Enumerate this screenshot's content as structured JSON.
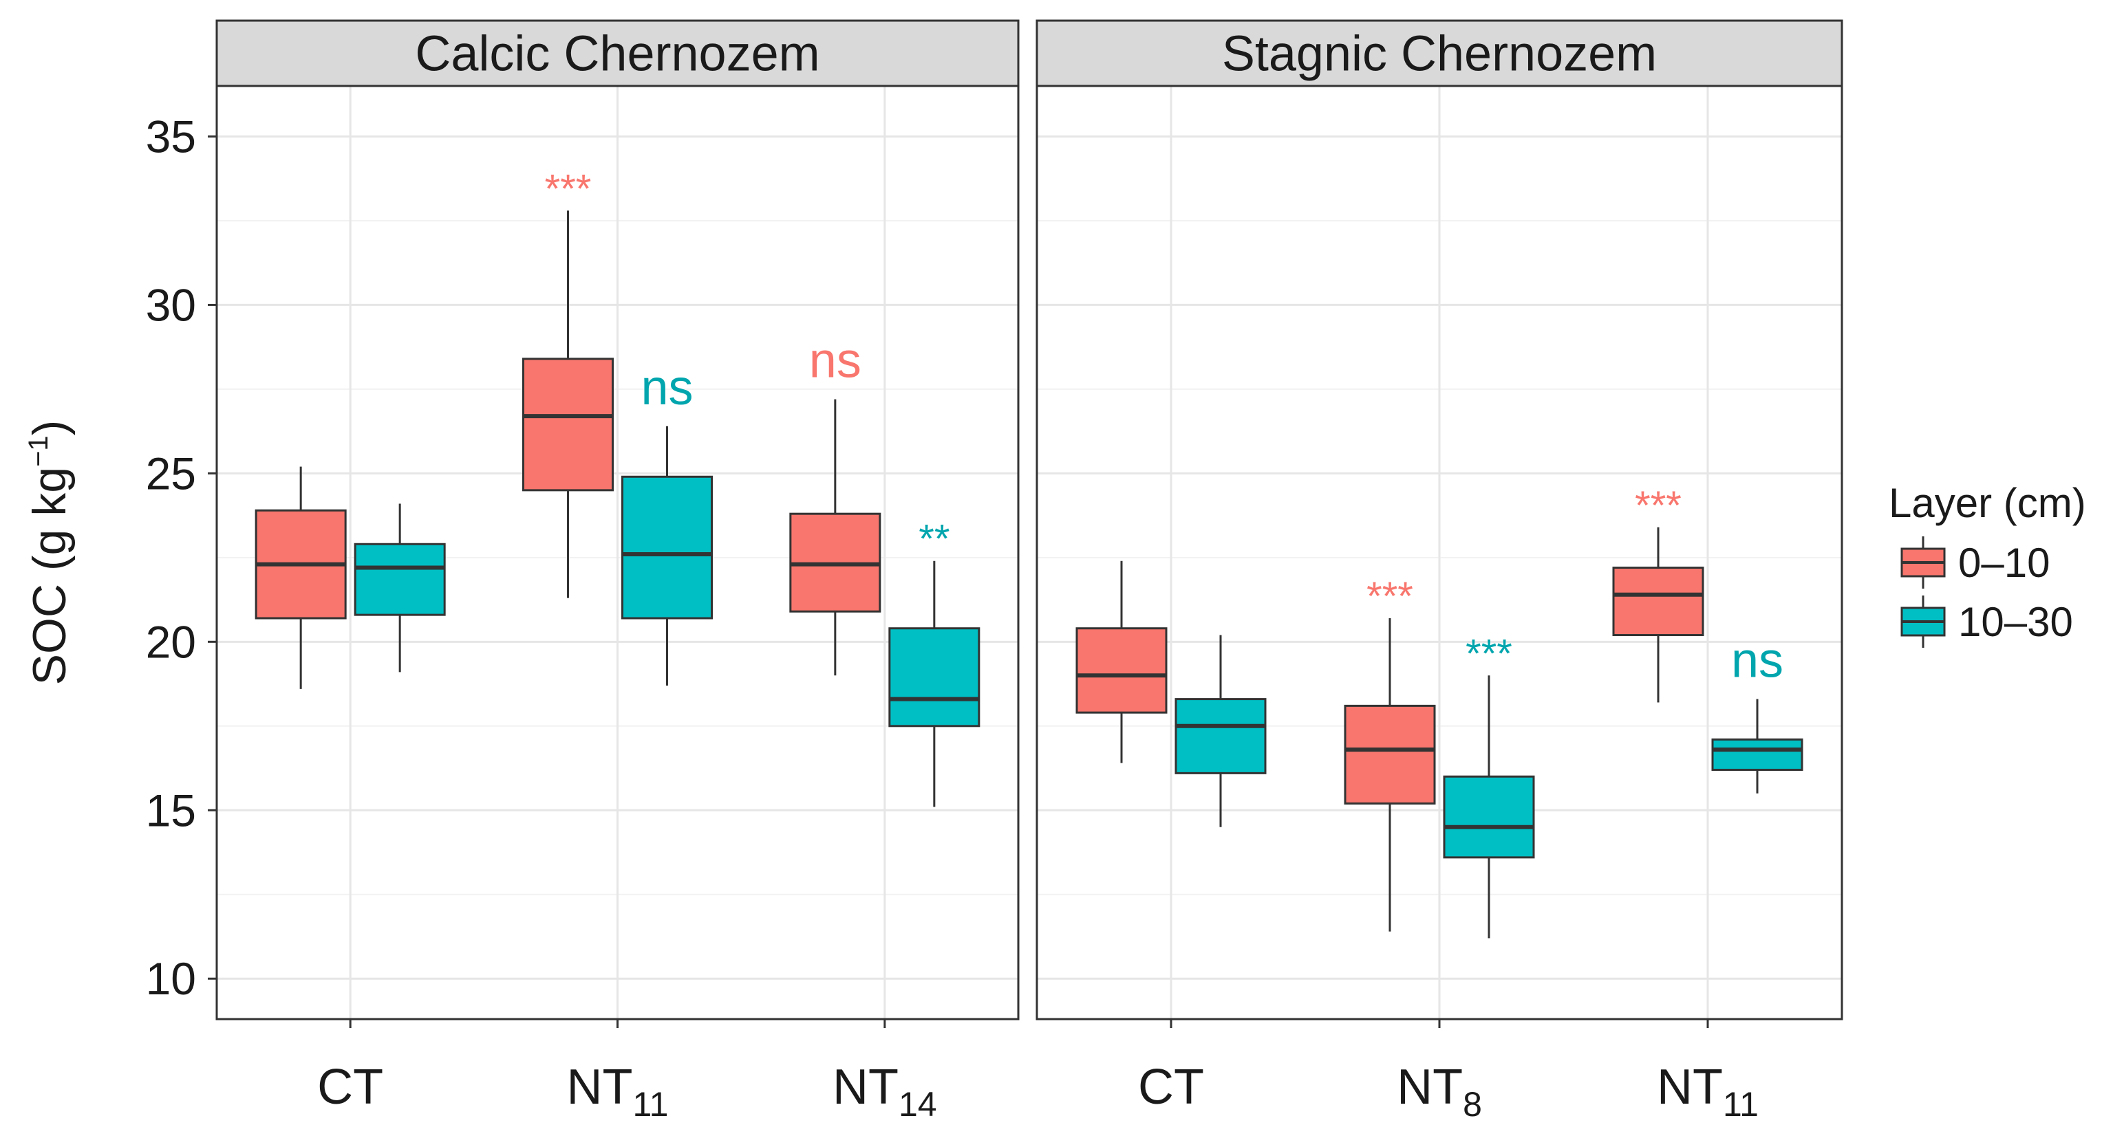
{
  "chart_data": {
    "type": "boxplot",
    "ylabel": {
      "main": "SOC (g kg",
      "sup": "−1",
      "close": ")"
    },
    "ylim": [
      8.8,
      36.5
    ],
    "yticks": [
      10,
      15,
      20,
      25,
      30,
      35
    ],
    "grid": true,
    "legend": {
      "title": "Layer (cm)",
      "position": "right",
      "entries": [
        {
          "label": "0–10",
          "color": "#F8766D"
        },
        {
          "label": "10–30",
          "color": "#00BFC4"
        }
      ]
    },
    "colors": {
      "0–10": "#F8766D",
      "10–30": "#00BFC4",
      "sig_0–10": "#F8766D",
      "sig_10–30": "#00A5AD"
    },
    "facets": [
      {
        "title": "Calcic Chernozem",
        "groups": [
          {
            "label": "CT",
            "sub": "",
            "boxes": [
              {
                "layer": "0–10",
                "min": 18.6,
                "q1": 20.7,
                "median": 22.3,
                "q3": 23.9,
                "max": 25.2,
                "sig": ""
              },
              {
                "layer": "10–30",
                "min": 19.1,
                "q1": 20.8,
                "median": 22.2,
                "q3": 22.9,
                "max": 24.1,
                "sig": ""
              }
            ]
          },
          {
            "label": "NT",
            "sub": "11",
            "boxes": [
              {
                "layer": "0–10",
                "min": 21.3,
                "q1": 24.5,
                "median": 26.7,
                "q3": 28.4,
                "max": 32.8,
                "sig": "***"
              },
              {
                "layer": "10–30",
                "min": 18.7,
                "q1": 20.7,
                "median": 22.6,
                "q3": 24.9,
                "max": 26.4,
                "sig": "ns"
              }
            ]
          },
          {
            "label": "NT",
            "sub": "14",
            "boxes": [
              {
                "layer": "0–10",
                "min": 19.0,
                "q1": 20.9,
                "median": 22.3,
                "q3": 23.8,
                "max": 27.2,
                "sig": "ns"
              },
              {
                "layer": "10–30",
                "min": 15.1,
                "q1": 17.5,
                "median": 18.3,
                "q3": 20.4,
                "max": 22.4,
                "sig": "**"
              }
            ]
          }
        ]
      },
      {
        "title": "Stagnic Chernozem",
        "groups": [
          {
            "label": "CT",
            "sub": "",
            "boxes": [
              {
                "layer": "0–10",
                "min": 16.4,
                "q1": 17.9,
                "median": 19.0,
                "q3": 20.4,
                "max": 22.4,
                "sig": ""
              },
              {
                "layer": "10–30",
                "min": 14.5,
                "q1": 16.1,
                "median": 17.5,
                "q3": 18.3,
                "max": 20.2,
                "sig": ""
              }
            ]
          },
          {
            "label": "NT",
            "sub": "8",
            "boxes": [
              {
                "layer": "0–10",
                "min": 11.4,
                "q1": 15.2,
                "median": 16.8,
                "q3": 18.1,
                "max": 20.7,
                "sig": "***"
              },
              {
                "layer": "10–30",
                "min": 11.2,
                "q1": 13.6,
                "median": 14.5,
                "q3": 16.0,
                "max": 19.0,
                "sig": "***"
              }
            ]
          },
          {
            "label": "NT",
            "sub": "11",
            "boxes": [
              {
                "layer": "0–10",
                "min": 18.2,
                "q1": 20.2,
                "median": 21.4,
                "q3": 22.2,
                "max": 23.4,
                "sig": "***"
              },
              {
                "layer": "10–30",
                "min": 15.5,
                "q1": 16.2,
                "median": 16.8,
                "q3": 17.1,
                "max": 18.3,
                "sig": "ns"
              }
            ]
          }
        ]
      }
    ]
  }
}
